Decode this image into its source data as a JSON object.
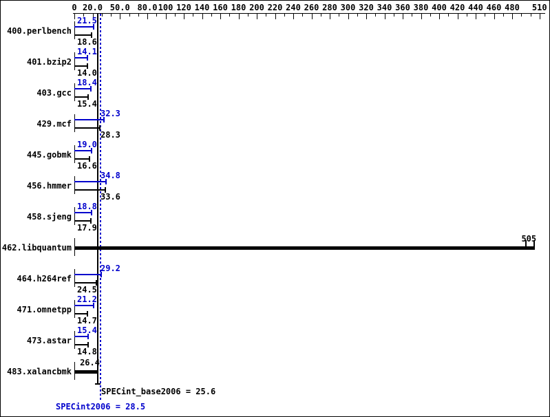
{
  "chart_data": {
    "type": "bar",
    "orientation": "horizontal",
    "title": "",
    "colors": {
      "peak": "#0000cc",
      "base": "#000000",
      "background": "#ffffff"
    },
    "xaxis": {
      "min": 0,
      "max": 510,
      "minor_tick_step": 10,
      "tick_labels": [
        "0",
        "20.0",
        "50.0",
        "80.0",
        "100",
        "120",
        "140",
        "160",
        "180",
        "200",
        "220",
        "240",
        "260",
        "280",
        "300",
        "320",
        "340",
        "360",
        "380",
        "400",
        "420",
        "440",
        "460",
        "480",
        "510"
      ]
    },
    "benchmarks": [
      {
        "name": "400.perlbench",
        "peak": 21.5,
        "base": 18.6,
        "peak_label": "21.5",
        "base_label": "18.6"
      },
      {
        "name": "401.bzip2",
        "peak": 14.1,
        "base": 14.0,
        "peak_label": "14.1",
        "base_label": "14.0"
      },
      {
        "name": "403.gcc",
        "peak": 18.4,
        "base": 15.4,
        "peak_label": "18.4",
        "base_label": "15.4"
      },
      {
        "name": "429.mcf",
        "peak": 32.3,
        "base": 28.3,
        "peak_label": "32.3",
        "base_label": "28.3"
      },
      {
        "name": "445.gobmk",
        "peak": 19.0,
        "base": 16.6,
        "peak_label": "19.0",
        "base_label": "16.6"
      },
      {
        "name": "456.hmmer",
        "peak": 34.8,
        "base": 33.6,
        "peak_label": "34.8",
        "base_label": "33.6"
      },
      {
        "name": "458.sjeng",
        "peak": 18.8,
        "base": 17.9,
        "peak_label": "18.8",
        "base_label": "17.9"
      },
      {
        "name": "462.libquantum",
        "merged": true,
        "value": 505,
        "value_label": "505"
      },
      {
        "name": "464.h264ref",
        "peak": 29.2,
        "base": 24.5,
        "peak_label": "29.2",
        "base_label": "24.5"
      },
      {
        "name": "471.omnetpp",
        "peak": 21.2,
        "base": 14.7,
        "peak_label": "21.2",
        "base_label": "14.7"
      },
      {
        "name": "473.astar",
        "peak": 15.4,
        "base": 14.8,
        "peak_label": "15.4",
        "base_label": "14.8"
      },
      {
        "name": "483.xalancbmk",
        "merged": true,
        "value": 26.4,
        "value_label": "26.4"
      }
    ],
    "reference_lines": [
      {
        "label": "SPECint_base2006 = 25.6",
        "value": 25.6,
        "style": "solid",
        "color": "#000000"
      },
      {
        "label": "SPECint2006 = 28.5",
        "value": 28.5,
        "style": "dotted",
        "color": "#0000cc"
      }
    ]
  }
}
